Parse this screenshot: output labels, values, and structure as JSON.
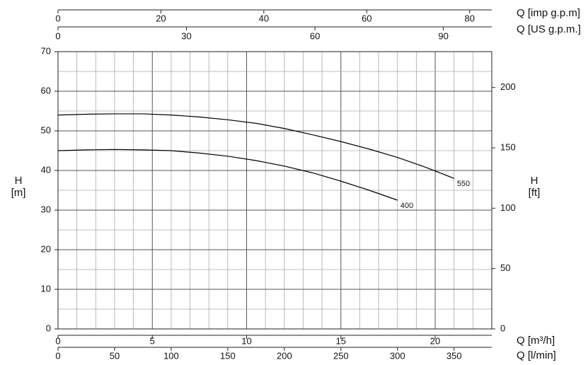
{
  "chart_data": {
    "type": "line",
    "x_label": "Q [l/min]",
    "xlim": [
      0,
      383.3
    ],
    "xticks": [
      0,
      50,
      100,
      150,
      200,
      250,
      300,
      350
    ],
    "y_label": "H",
    "y_unit": "[m]",
    "ylim": [
      0,
      70
    ],
    "yticks": [
      0,
      10,
      20,
      30,
      40,
      50,
      60,
      70
    ],
    "ygrid": [
      0,
      5,
      10,
      15,
      20,
      25,
      30,
      35,
      40,
      45,
      50,
      55,
      60,
      65,
      70
    ],
    "y2_label": "H",
    "y2_unit": "[ft]",
    "y2lim": [
      0,
      229.7
    ],
    "y2ticks": [
      0,
      50,
      100,
      150,
      200
    ],
    "extra_x_axes": [
      {
        "label": "Q [m³/h]",
        "lim": [
          0,
          23
        ],
        "ticks": [
          0,
          5,
          10,
          15,
          20
        ],
        "grid": [
          0,
          1,
          2,
          3,
          4,
          5,
          6,
          7,
          8,
          9,
          10,
          11,
          12,
          13,
          14,
          15,
          16,
          17,
          18,
          19,
          20,
          21,
          22,
          23
        ]
      },
      {
        "label": "Q [US g.p.m.]",
        "lim": [
          0,
          101.3
        ],
        "ticks": [
          0,
          30,
          60,
          90
        ]
      },
      {
        "label": "Q [imp g.p.m]",
        "lim": [
          0,
          84.3
        ],
        "ticks": [
          0,
          20,
          40,
          60,
          80
        ]
      }
    ],
    "series": [
      {
        "name": "550",
        "color": "#000000",
        "x": [
          0,
          25,
          50,
          75,
          100,
          125,
          150,
          175,
          200,
          225,
          250,
          275,
          300,
          325,
          350
        ],
        "values": [
          54.0,
          54.2,
          54.3,
          54.3,
          54.0,
          53.5,
          52.8,
          51.9,
          50.6,
          49.0,
          47.3,
          45.4,
          43.3,
          40.8,
          38.0
        ]
      },
      {
        "name": "400",
        "color": "#000000",
        "x": [
          0,
          25,
          50,
          75,
          100,
          125,
          150,
          175,
          200,
          225,
          250,
          275,
          300
        ],
        "values": [
          45.0,
          45.2,
          45.3,
          45.2,
          45.0,
          44.4,
          43.6,
          42.5,
          41.1,
          39.4,
          37.3,
          35.0,
          32.5
        ]
      }
    ]
  }
}
